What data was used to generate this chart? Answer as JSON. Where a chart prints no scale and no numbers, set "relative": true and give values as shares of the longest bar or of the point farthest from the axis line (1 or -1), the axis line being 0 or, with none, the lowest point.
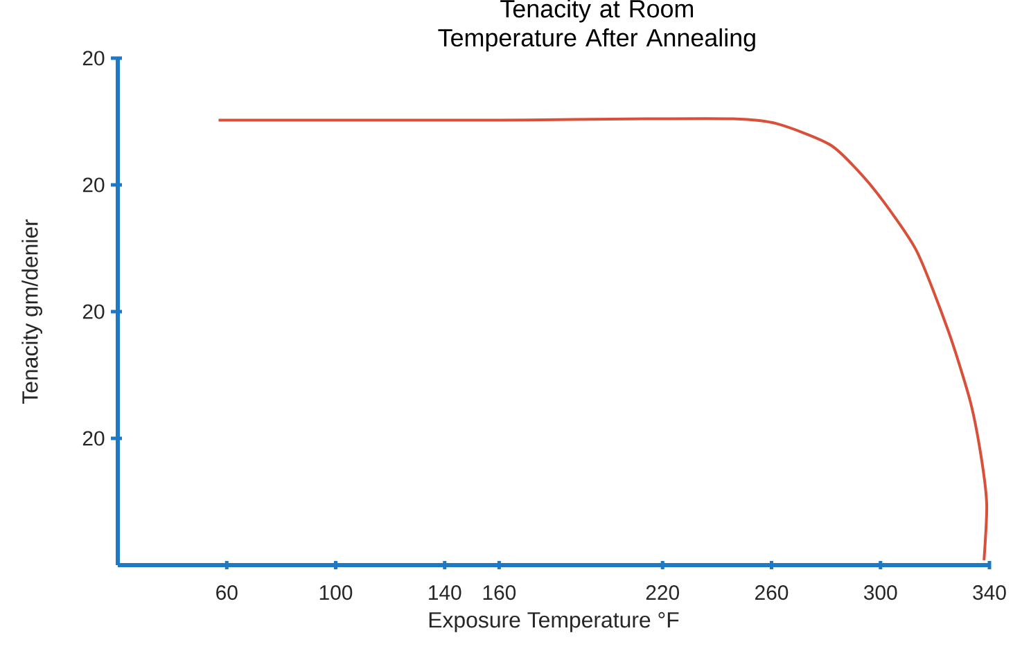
{
  "chart_data": {
    "type": "line",
    "title": "Tenacity at Room Temperature After Annealing",
    "xlabel": "Exposure Temperature °F",
    "ylabel": "Tenacity gm/denier",
    "xlim": [
      20,
      340
    ],
    "xticks": [
      60,
      100,
      140,
      160,
      220,
      260,
      300,
      340
    ],
    "relative": true,
    "annotations": [
      "20",
      "20",
      "20",
      "20"
    ],
    "grid": false,
    "marker": "none",
    "line_style": "solid",
    "series": [
      {
        "color": "#d9503a",
        "x": [
          57,
          120,
          160,
          214,
          246,
          262,
          282,
          297,
          313,
          325,
          333,
          337,
          339,
          338
        ],
        "values": [
          0.997,
          0.997,
          0.997,
          1,
          1,
          0.989,
          0.94,
          0.847,
          0.707,
          0.523,
          0.366,
          0.241,
          0.134,
          0.011
        ]
      }
    ]
  }
}
